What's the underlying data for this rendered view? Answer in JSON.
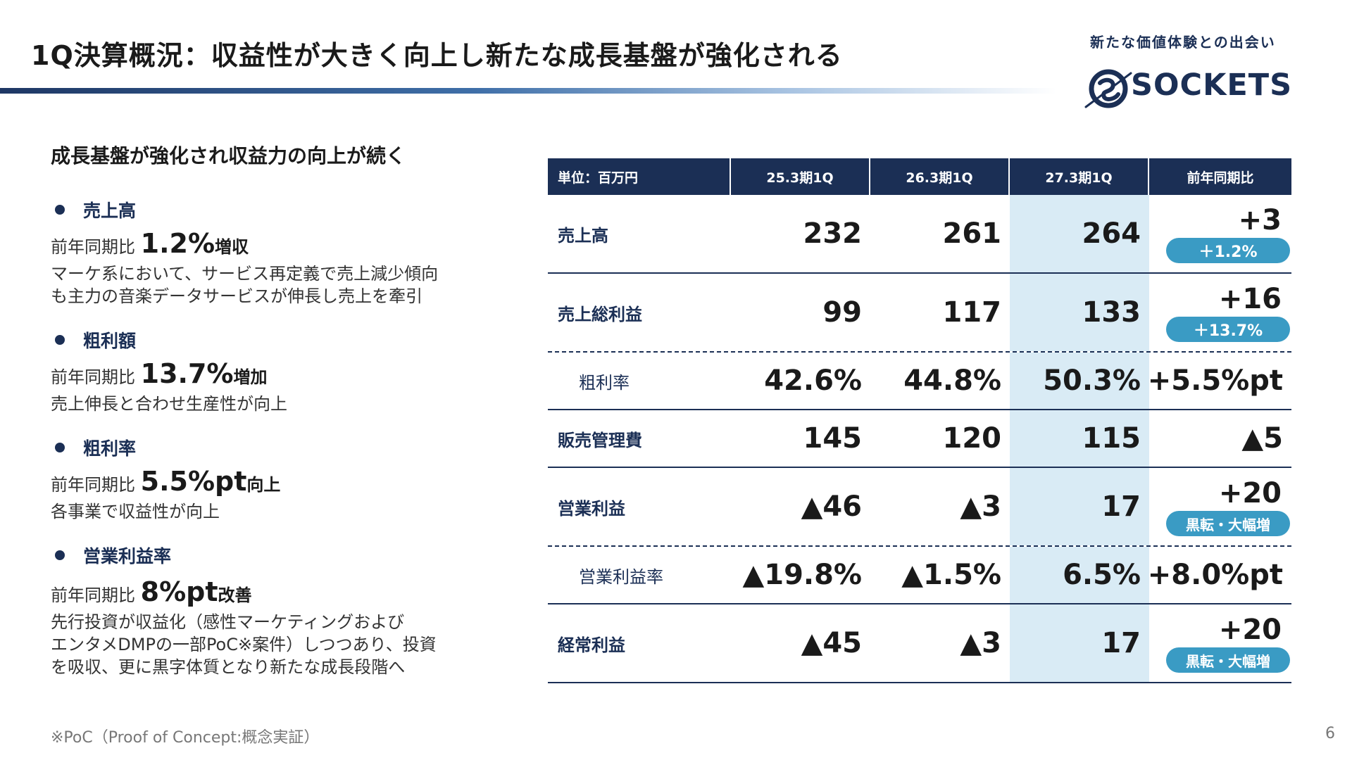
{
  "header": {
    "title": "1Q決算概況：収益性が大きく向上し新たな成長基盤が強化される",
    "tagline": "新たな価値体験との出会い",
    "logo_word": "SOCKETS",
    "colors": {
      "navy": "#1b2f55",
      "accent": "#3a9bc4",
      "highlight": "#d9ebf5"
    }
  },
  "left": {
    "lead": "成長基盤が強化され収益力の向上が続く",
    "items": [
      {
        "head": "売上高",
        "yoy_prefix": "前年同期比",
        "yoy_value": "1.2%",
        "yoy_suffix": "増収",
        "desc": [
          "マーケ系において、サービス再定義で売上減少傾向",
          "も主力の音楽データサービスが伸長し売上を牽引"
        ]
      },
      {
        "head": "粗利額",
        "yoy_prefix": "前年同期比",
        "yoy_value": "13.7%",
        "yoy_suffix": "増加",
        "desc": [
          "売上伸長と合わせ生産性が向上"
        ]
      },
      {
        "head": "粗利率",
        "yoy_prefix": "前年同期比",
        "yoy_value": "5.5%pt",
        "yoy_suffix": "向上",
        "desc": [
          "各事業で収益性が向上"
        ]
      },
      {
        "head": "営業利益率",
        "yoy_prefix": "前年同期比",
        "yoy_value": "8%pt",
        "yoy_suffix": "改善",
        "desc": [
          "先行投資が収益化（感性マーケティングおよび",
          "エンタメDMPの一部PoC※案件）しつつあり、投資",
          "を吸収、更に黒字体質となり新たな成長段階へ"
        ]
      }
    ]
  },
  "table": {
    "headers": [
      "単位：百万円",
      "25.3期1Q",
      "26.3期1Q",
      "27.3期1Q",
      "前年同期比"
    ],
    "rows": [
      {
        "label": "売上高",
        "v1": "232",
        "v2": "261",
        "v3": "264",
        "diff": "+3",
        "pill": "＋1.2%"
      },
      {
        "label": "売上総利益",
        "v1": "99",
        "v2": "117",
        "v3": "133",
        "diff": "+16",
        "pill": "＋13.7%"
      },
      {
        "label": "粗利率",
        "v1": "42.6%",
        "v2": "44.8%",
        "v3": "50.3%",
        "diff": "+5.5%pt"
      },
      {
        "label": "販売管理費",
        "v1": "145",
        "v2": "120",
        "v3": "115",
        "diff": "▲5"
      },
      {
        "label": "営業利益",
        "v1": "▲46",
        "v2": "▲3",
        "v3": "17",
        "diff": "+20",
        "pill": "黒転・大幅増"
      },
      {
        "label": "営業利益率",
        "v1": "▲19.8%",
        "v2": "▲1.5%",
        "v3": "6.5%",
        "diff": "+8.0%pt"
      },
      {
        "label": "経常利益",
        "v1": "▲45",
        "v2": "▲3",
        "v3": "17",
        "diff": "+20",
        "pill": "黒転・大幅増"
      }
    ]
  },
  "footer": {
    "footnote": "※PoC（Proof of Concept:概念実証）",
    "page": "6"
  }
}
